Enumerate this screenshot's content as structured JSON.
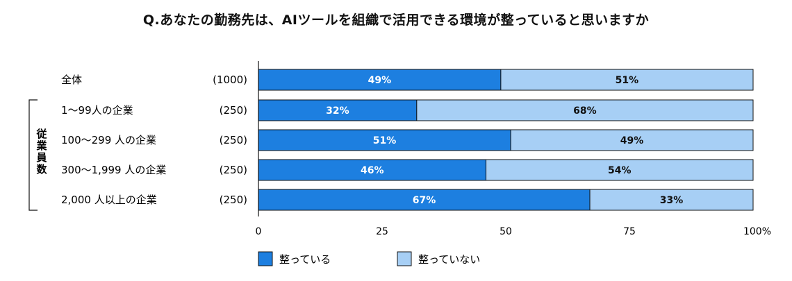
{
  "chart_data": {
    "type": "bar",
    "orientation": "horizontal",
    "stacked": true,
    "title": "Q.あなたの勤務先は、AIツールを組織で活用できる環境が整っていると思いますか",
    "group_label": "従業員数",
    "categories": [
      "全体",
      "1〜99人の企業",
      "100〜299 人の企業",
      "300〜1,999 人の企業",
      "2,000 人以上の企業"
    ],
    "sample_sizes": [
      "(1000)",
      "(250)",
      "(250)",
      "(250)",
      "(250)"
    ],
    "series": [
      {
        "name": "整っている",
        "values": [
          49,
          32,
          51,
          46,
          67
        ],
        "labels": [
          "49%",
          "32%",
          "51%",
          "46%",
          "67%"
        ],
        "color": "#1d7fe0",
        "label_color": "#ffffff"
      },
      {
        "name": "整っていない",
        "values": [
          51,
          68,
          49,
          54,
          33
        ],
        "labels": [
          "51%",
          "68%",
          "49%",
          "54%",
          "33%"
        ],
        "color": "#a7cff5",
        "label_color": "#111111"
      }
    ],
    "xlim": [
      0,
      100
    ],
    "xticks": [
      "0",
      "25",
      "50",
      "75",
      "100%"
    ],
    "grid": false,
    "legend_position": "bottom-left"
  }
}
